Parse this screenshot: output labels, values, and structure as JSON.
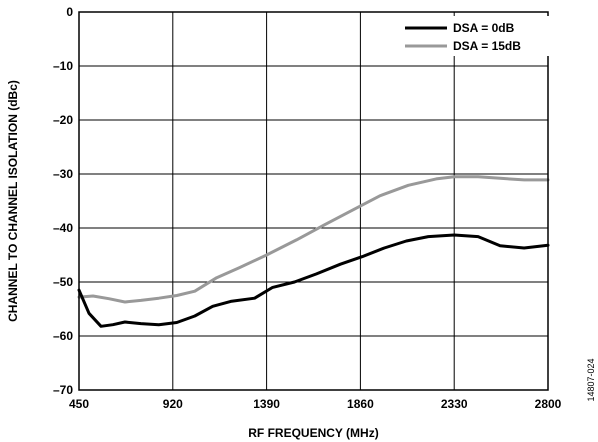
{
  "figure_id": "14807-024",
  "chart_data": {
    "type": "line",
    "xlabel": "RF FREQUENCY (MHz)",
    "ylabel": "CHANNEL TO CHANNEL ISOLATION (dBc)",
    "xlim": [
      450,
      2800
    ],
    "ylim": [
      -70,
      0
    ],
    "xticks": [
      450,
      920,
      1390,
      1860,
      2330,
      2800
    ],
    "yticks": [
      0,
      -10,
      -20,
      -30,
      -40,
      -50,
      -60,
      -70
    ],
    "xtick_labels": [
      "450",
      "920",
      "1390",
      "1860",
      "2330",
      "2800"
    ],
    "ytick_labels": [
      "0",
      "–10",
      "–20",
      "–30",
      "–40",
      "–50",
      "–60",
      "–70"
    ],
    "grid": true,
    "legend_position": "top-right",
    "series": [
      {
        "name": "DSA = 0dB",
        "color": "#000000",
        "x": [
          450,
          500,
          560,
          620,
          680,
          760,
          850,
          940,
          1030,
          1120,
          1210,
          1330,
          1420,
          1530,
          1640,
          1760,
          1870,
          1980,
          2090,
          2200,
          2330,
          2450,
          2560,
          2680,
          2800
        ],
        "y": [
          -51.5,
          -55.8,
          -58.2,
          -57.9,
          -57.4,
          -57.7,
          -57.9,
          -57.5,
          -56.3,
          -54.5,
          -53.6,
          -53.0,
          -51.0,
          -50.0,
          -48.5,
          -46.7,
          -45.3,
          -43.7,
          -42.4,
          -41.6,
          -41.3,
          -41.6,
          -43.3,
          -43.7,
          -43.2
        ]
      },
      {
        "name": "DSA = 15dB",
        "color": "#999999",
        "x": [
          450,
          520,
          600,
          680,
          760,
          850,
          940,
          1030,
          1140,
          1250,
          1390,
          1540,
          1680,
          1820,
          1960,
          2100,
          2240,
          2330,
          2450,
          2560,
          2680,
          2800
        ],
        "y": [
          -52.8,
          -52.6,
          -53.1,
          -53.7,
          -53.4,
          -53.0,
          -52.5,
          -51.7,
          -49.2,
          -47.4,
          -45.0,
          -42.2,
          -39.4,
          -36.7,
          -34.0,
          -32.1,
          -30.9,
          -30.5,
          -30.5,
          -30.8,
          -31.1,
          -31.1
        ]
      }
    ]
  }
}
